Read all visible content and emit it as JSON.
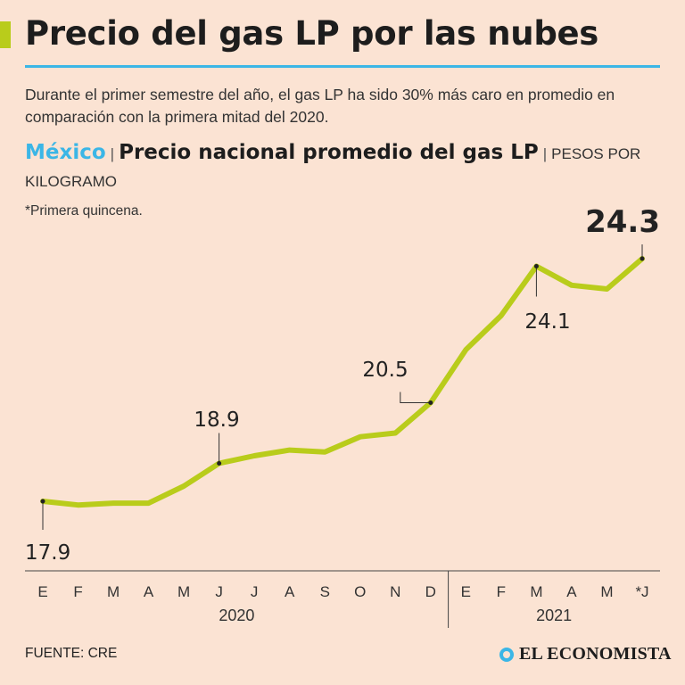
{
  "header": {
    "title": "Precio del gas LP por las nubes",
    "subtitle": "Durante el primer semestre del año, el gas LP ha sido 30% más caro en promedio en comparación con la primera mitad del 2020."
  },
  "chart_head": {
    "country": "México",
    "separator": "|",
    "main_title": "Precio nacional promedio del gas LP",
    "units": "PESOS POR KILOGRAMO",
    "note": "*Primera quincena."
  },
  "footer": {
    "source": "FUENTE: CRE",
    "brand": "EL ECONOMISTA"
  },
  "colors": {
    "line": "#b9cc1b",
    "accent": "#3bb6e6",
    "background": "#fbe3d3"
  },
  "chart_data": {
    "type": "line",
    "title": "Precio nacional promedio del gas LP",
    "ylabel": "PESOS POR KILOGRAMO",
    "x": [
      "E",
      "F",
      "M",
      "A",
      "M",
      "J",
      "J",
      "A",
      "S",
      "O",
      "N",
      "D",
      "E",
      "F",
      "M",
      "A",
      "M",
      "*J"
    ],
    "year_groups": [
      {
        "label": "2020",
        "from": 0,
        "to": 11
      },
      {
        "label": "2021",
        "from": 12,
        "to": 17
      }
    ],
    "series": [
      {
        "values": [
          17.9,
          17.8,
          17.85,
          17.85,
          18.3,
          18.9,
          19.1,
          19.25,
          19.2,
          19.6,
          19.7,
          20.5,
          21.9,
          22.8,
          24.1,
          23.6,
          23.5,
          24.3
        ]
      }
    ],
    "data_labels": [
      {
        "index": 0,
        "text": "17.9"
      },
      {
        "index": 5,
        "text": "18.9"
      },
      {
        "index": 11,
        "text": "20.5"
      },
      {
        "index": 14,
        "text": "24.1"
      },
      {
        "index": 17,
        "text": "24.3"
      }
    ],
    "grid": false,
    "legend": "none"
  }
}
